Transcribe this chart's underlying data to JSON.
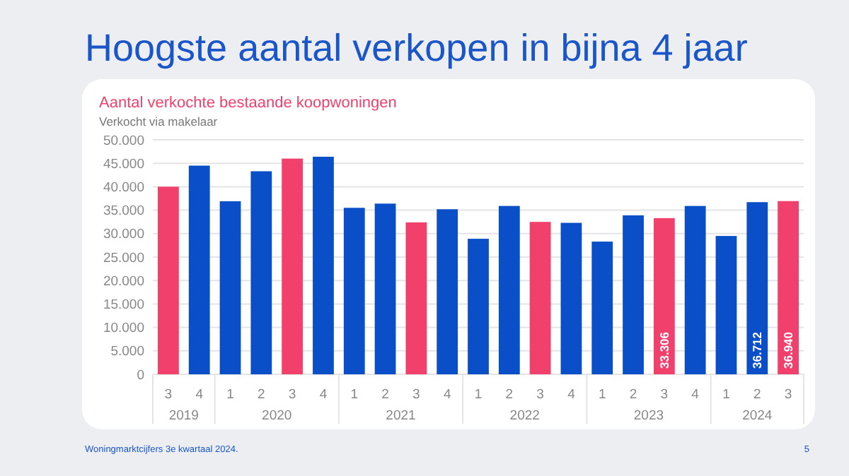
{
  "chart_data": {
    "type": "bar",
    "title": "Hoogste aantal verkopen in bijna 4 jaar",
    "subtitle": "Aantal verkochte bestaande koopwoningen",
    "ylabel": "Verkocht via makelaar",
    "categories": [
      "3",
      "4",
      "1",
      "2",
      "3",
      "4",
      "1",
      "2",
      "3",
      "4",
      "1",
      "2",
      "3",
      "4",
      "1",
      "2",
      "3",
      "4",
      "1",
      "2",
      "3"
    ],
    "values": [
      40000,
      44500,
      36900,
      43300,
      46000,
      46400,
      35500,
      36400,
      32400,
      35200,
      28900,
      35900,
      32500,
      32300,
      28300,
      33900,
      33306,
      35900,
      29500,
      36712,
      36940
    ],
    "colors": [
      "#f2406c",
      "#0a4fc7",
      "#0a4fc7",
      "#0a4fc7",
      "#f2406c",
      "#0a4fc7",
      "#0a4fc7",
      "#0a4fc7",
      "#f2406c",
      "#0a4fc7",
      "#0a4fc7",
      "#0a4fc7",
      "#f2406c",
      "#0a4fc7",
      "#0a4fc7",
      "#0a4fc7",
      "#f2406c",
      "#0a4fc7",
      "#0a4fc7",
      "#0a4fc7",
      "#f2406c"
    ],
    "value_labels": [
      null,
      null,
      null,
      null,
      null,
      null,
      null,
      null,
      null,
      null,
      null,
      null,
      null,
      null,
      null,
      null,
      "33.306",
      null,
      null,
      "36.712",
      "36.940"
    ],
    "ylim": [
      0,
      50000
    ],
    "yticks": [
      0,
      {
        "value": 5000,
        "label": "5.000"
      },
      {
        "value": 10000,
        "label": "10.000"
      },
      {
        "value": 15000,
        "label": "15.000"
      },
      {
        "value": 20000,
        "label": "20.000"
      },
      {
        "value": 25000,
        "label": "25.000"
      },
      {
        "value": 30000,
        "label": "30.000"
      },
      {
        "value": 35000,
        "label": "35.000"
      },
      {
        "value": 40000,
        "label": "40.000"
      },
      {
        "value": 45000,
        "label": "45.000"
      },
      {
        "value": 50000,
        "label": "50.000"
      }
    ],
    "grid": "y",
    "annotations": [
      "2019",
      "2020",
      "2021",
      "2022",
      "2023",
      "2024",
      "Woningmarktcijfers 3e kwartaal 2024.",
      "5"
    ]
  }
}
